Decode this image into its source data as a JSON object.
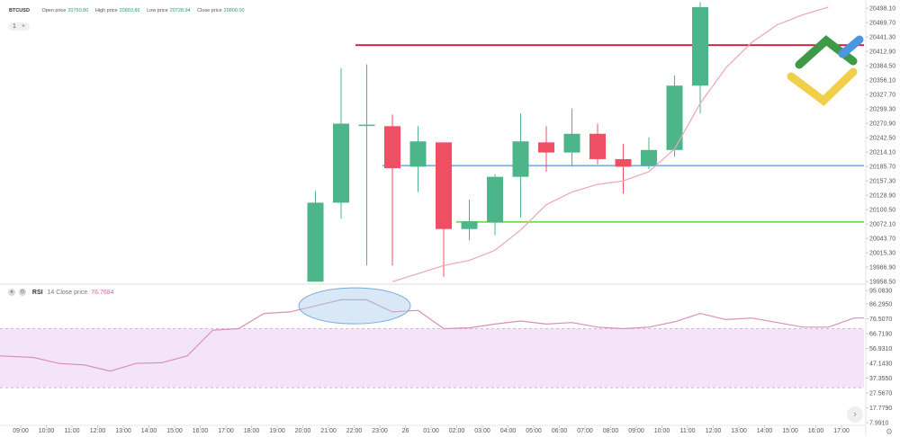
{
  "header": {
    "symbol": "BTCUSD",
    "open_label": "Open price",
    "open_value": "20750.80",
    "high_label": "High price",
    "high_value": "20803.86",
    "low_label": "Low price",
    "low_value": "20728.94",
    "close_label": "Close price",
    "close_value": "20800.00",
    "interval": "1",
    "add_label": "+"
  },
  "rsi": {
    "name": "RSI",
    "params": "14 Close price",
    "value": "76.7684",
    "buttons": [
      "eye-icon",
      "gear-icon"
    ]
  },
  "colors": {
    "up": "#4cb68a",
    "down": "#ef4f63",
    "ma": "#eaa6b6",
    "rsi_line": "#d98fb8",
    "rsi_band": "#f4e4fa",
    "level_red": "#cc1f3d",
    "level_blue": "#80aedf",
    "level_green": "#7ed957",
    "ellipse": "#aacdee"
  },
  "chart_data": [
    {
      "type": "candlestick",
      "title": "",
      "price_ticks": [
        "20498.10",
        "20469.70",
        "20441.30",
        "20412.90",
        "20384.50",
        "20356.10",
        "20327.70",
        "20299.30",
        "20270.90",
        "20242.50",
        "20214.10",
        "20185.70",
        "20157.30",
        "20128.90",
        "20100.50",
        "20072.10",
        "20043.70",
        "20015.30",
        "19986.90",
        "19958.50"
      ],
      "time_ticks": [
        "09:00",
        "10:00",
        "11:00",
        "12:00",
        "13:00",
        "14:00",
        "15:00",
        "16:00",
        "17:00",
        "18:00",
        "19:00",
        "20:00",
        "21:00",
        "22:00",
        "23:00",
        "26",
        "01:00",
        "02:00",
        "03:00",
        "04:00",
        "05:00",
        "06:00",
        "07:00",
        "08:00",
        "09:00",
        "10:00",
        "11:00",
        "12:00",
        "13:00",
        "14:00",
        "15:00",
        "16:00",
        "17:00"
      ],
      "candles": [
        {
          "time": "20:00",
          "open": 19958,
          "high": 20137,
          "low": 19958,
          "close": 20114
        },
        {
          "time": "21:00",
          "open": 20114,
          "high": 20380,
          "low": 20082,
          "close": 20270
        },
        {
          "time": "22:00",
          "open": 20268,
          "high": 20387,
          "low": 19990,
          "close": 20268
        },
        {
          "time": "23:00",
          "open": 20265,
          "high": 20288,
          "low": 19990,
          "close": 20182
        },
        {
          "time": "26",
          "open": 20185,
          "high": 20265,
          "low": 20135,
          "close": 20235
        },
        {
          "time": "01:00",
          "open": 20233,
          "high": 20233,
          "low": 19968,
          "close": 20062
        },
        {
          "time": "02:00",
          "open": 20062,
          "high": 20120,
          "low": 20040,
          "close": 20077
        },
        {
          "time": "03:00",
          "open": 20075,
          "high": 20170,
          "low": 20050,
          "close": 20165
        },
        {
          "time": "04:00",
          "open": 20165,
          "high": 20290,
          "low": 20085,
          "close": 20235
        },
        {
          "time": "05:00",
          "open": 20233,
          "high": 20265,
          "low": 20175,
          "close": 20213
        },
        {
          "time": "06:00",
          "open": 20213,
          "high": 20300,
          "low": 20185,
          "close": 20250
        },
        {
          "time": "07:00",
          "open": 20250,
          "high": 20270,
          "low": 20190,
          "close": 20200
        },
        {
          "time": "08:00",
          "open": 20200,
          "high": 20230,
          "low": 20132,
          "close": 20185
        },
        {
          "time": "09:00",
          "open": 20187,
          "high": 20243,
          "low": 20180,
          "close": 20218
        },
        {
          "time": "10:00",
          "open": 20218,
          "high": 20365,
          "low": 20205,
          "close": 20345
        },
        {
          "time": "11:00",
          "open": 20345,
          "high": 20510,
          "low": 20290,
          "close": 20500
        }
      ],
      "moving_average": [
        {
          "time": "23:00",
          "value": 19958
        },
        {
          "time": "01:00",
          "value": 19990
        },
        {
          "time": "02:00",
          "value": 20000
        },
        {
          "time": "03:00",
          "value": 20020
        },
        {
          "time": "04:00",
          "value": 20060
        },
        {
          "time": "05:00",
          "value": 20110
        },
        {
          "time": "06:00",
          "value": 20135
        },
        {
          "time": "07:00",
          "value": 20150
        },
        {
          "time": "08:00",
          "value": 20157
        },
        {
          "time": "09:00",
          "value": 20175
        },
        {
          "time": "10:00",
          "value": 20220
        },
        {
          "time": "11:00",
          "value": 20310
        },
        {
          "time": "12:00",
          "value": 20380
        },
        {
          "time": "13:00",
          "value": 20430
        },
        {
          "time": "14:00",
          "value": 20465
        },
        {
          "time": "15:00",
          "value": 20485
        },
        {
          "time": "16:00",
          "value": 20500
        }
      ],
      "levels": [
        {
          "value": 20425,
          "color": "level_red"
        },
        {
          "value": 20187,
          "color": "level_blue"
        },
        {
          "value": 20076,
          "color": "level_green"
        }
      ]
    },
    {
      "type": "line",
      "title": "RSI",
      "ticks": [
        "95.0830",
        "86.2950",
        "76.5070",
        "66.7190",
        "56.9310",
        "47.1430",
        "37.3550",
        "27.5670",
        "17.7790",
        "7.9910"
      ],
      "band": [
        31,
        70
      ],
      "series": [
        {
          "x": "08:00",
          "y": 52
        },
        {
          "x": "09:00",
          "y": 51
        },
        {
          "x": "10:00",
          "y": 47
        },
        {
          "x": "11:00",
          "y": 46
        },
        {
          "x": "12:00",
          "y": 42
        },
        {
          "x": "13:00",
          "y": 47
        },
        {
          "x": "14:00",
          "y": 47.5
        },
        {
          "x": "15:00",
          "y": 52
        },
        {
          "x": "16:00",
          "y": 69
        },
        {
          "x": "17:00",
          "y": 70
        },
        {
          "x": "18:00",
          "y": 80
        },
        {
          "x": "19:00",
          "y": 81
        },
        {
          "x": "20:00",
          "y": 85
        },
        {
          "x": "21:00",
          "y": 89
        },
        {
          "x": "22:00",
          "y": 89
        },
        {
          "x": "23:00",
          "y": 81
        },
        {
          "x": "26",
          "y": 82
        },
        {
          "x": "01:00",
          "y": 70
        },
        {
          "x": "02:00",
          "y": 70.5
        },
        {
          "x": "03:00",
          "y": 73
        },
        {
          "x": "04:00",
          "y": 75
        },
        {
          "x": "05:00",
          "y": 73
        },
        {
          "x": "06:00",
          "y": 74
        },
        {
          "x": "07:00",
          "y": 71
        },
        {
          "x": "08:00",
          "y": 70
        },
        {
          "x": "09:00",
          "y": 71
        },
        {
          "x": "10:00",
          "y": 74.5
        },
        {
          "x": "11:00",
          "y": 80
        },
        {
          "x": "12:00",
          "y": 76
        },
        {
          "x": "13:00",
          "y": 77
        },
        {
          "x": "14:00",
          "y": 74
        },
        {
          "x": "15:00",
          "y": 71
        },
        {
          "x": "16:00",
          "y": 71
        },
        {
          "x": "17:00",
          "y": 77
        },
        {
          "x": "17:30",
          "y": 77
        }
      ]
    }
  ]
}
